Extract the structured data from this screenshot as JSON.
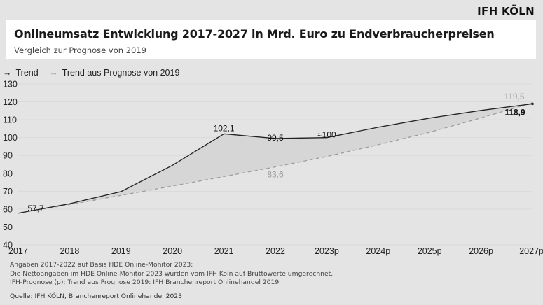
{
  "brand": "IFH KÖLN",
  "header": {
    "title": "Onlineumsatz Entwicklung 2017-2027 in Mrd. Euro zu Endverbraucherpreisen",
    "subtitle": "Vergleich zur Prognose von 2019"
  },
  "legend": {
    "items": [
      {
        "marker": "→",
        "label": "Trend"
      },
      {
        "marker": "→",
        "label": "Trend aus Prognose von 2019"
      }
    ]
  },
  "notes": [
    "Angaben 2017-2022 auf Basis HDE Online-Monitor 2023;",
    "Die Nettoangaben im HDE Online-Monitor 2023 wurden vom IFH Köln auf Bruttowerte umgerechnet.",
    "IFH-Prognose (p); Trend aus Prognose 2019: IFH Branchenreport Onlinehandel 2019"
  ],
  "source": "Quelle: IFH KÖLN, Branchenreport Onlinehandel 2023",
  "chart_data": {
    "type": "line",
    "title": "Onlineumsatz Entwicklung 2017-2027 in Mrd. Euro zu Endverbraucherpreisen",
    "subtitle": "Vergleich zur Prognose von 2019",
    "xlabel": "",
    "ylabel": "",
    "categories": [
      "2017",
      "2018",
      "2019",
      "2020",
      "2021",
      "2022",
      "2023p",
      "2024p",
      "2025p",
      "2026p",
      "2027p"
    ],
    "ylim": [
      40,
      130
    ],
    "yticks": [
      130,
      120,
      110,
      100,
      90,
      80,
      70,
      60,
      50,
      40
    ],
    "grid": true,
    "legend_position": "top-left",
    "colors": {
      "trend": "#222222",
      "prognose": "#9a9a9a",
      "area": "#d6d6d6"
    },
    "series": [
      {
        "name": "Trend",
        "style": "solid",
        "values": [
          57.7,
          63.0,
          69.8,
          84.5,
          102.1,
          99.5,
          100.0,
          105.8,
          110.9,
          115.2,
          118.9
        ]
      },
      {
        "name": "Trend aus Prognose von 2019",
        "style": "dashed",
        "values": [
          57.7,
          62.5,
          67.7,
          72.9,
          78.2,
          83.6,
          89.4,
          96.0,
          103.0,
          111.0,
          119.5
        ]
      }
    ],
    "data_labels": [
      {
        "series": 0,
        "index": 0,
        "text": "57,7"
      },
      {
        "series": 0,
        "index": 4,
        "text": "102,1"
      },
      {
        "series": 0,
        "index": 5,
        "text": "99,5"
      },
      {
        "series": 0,
        "index": 6,
        "text": "≈100"
      },
      {
        "series": 0,
        "index": 10,
        "text": "118,9"
      },
      {
        "series": 1,
        "index": 5,
        "text": "83,6"
      },
      {
        "series": 1,
        "index": 10,
        "text": "119,5"
      }
    ]
  }
}
